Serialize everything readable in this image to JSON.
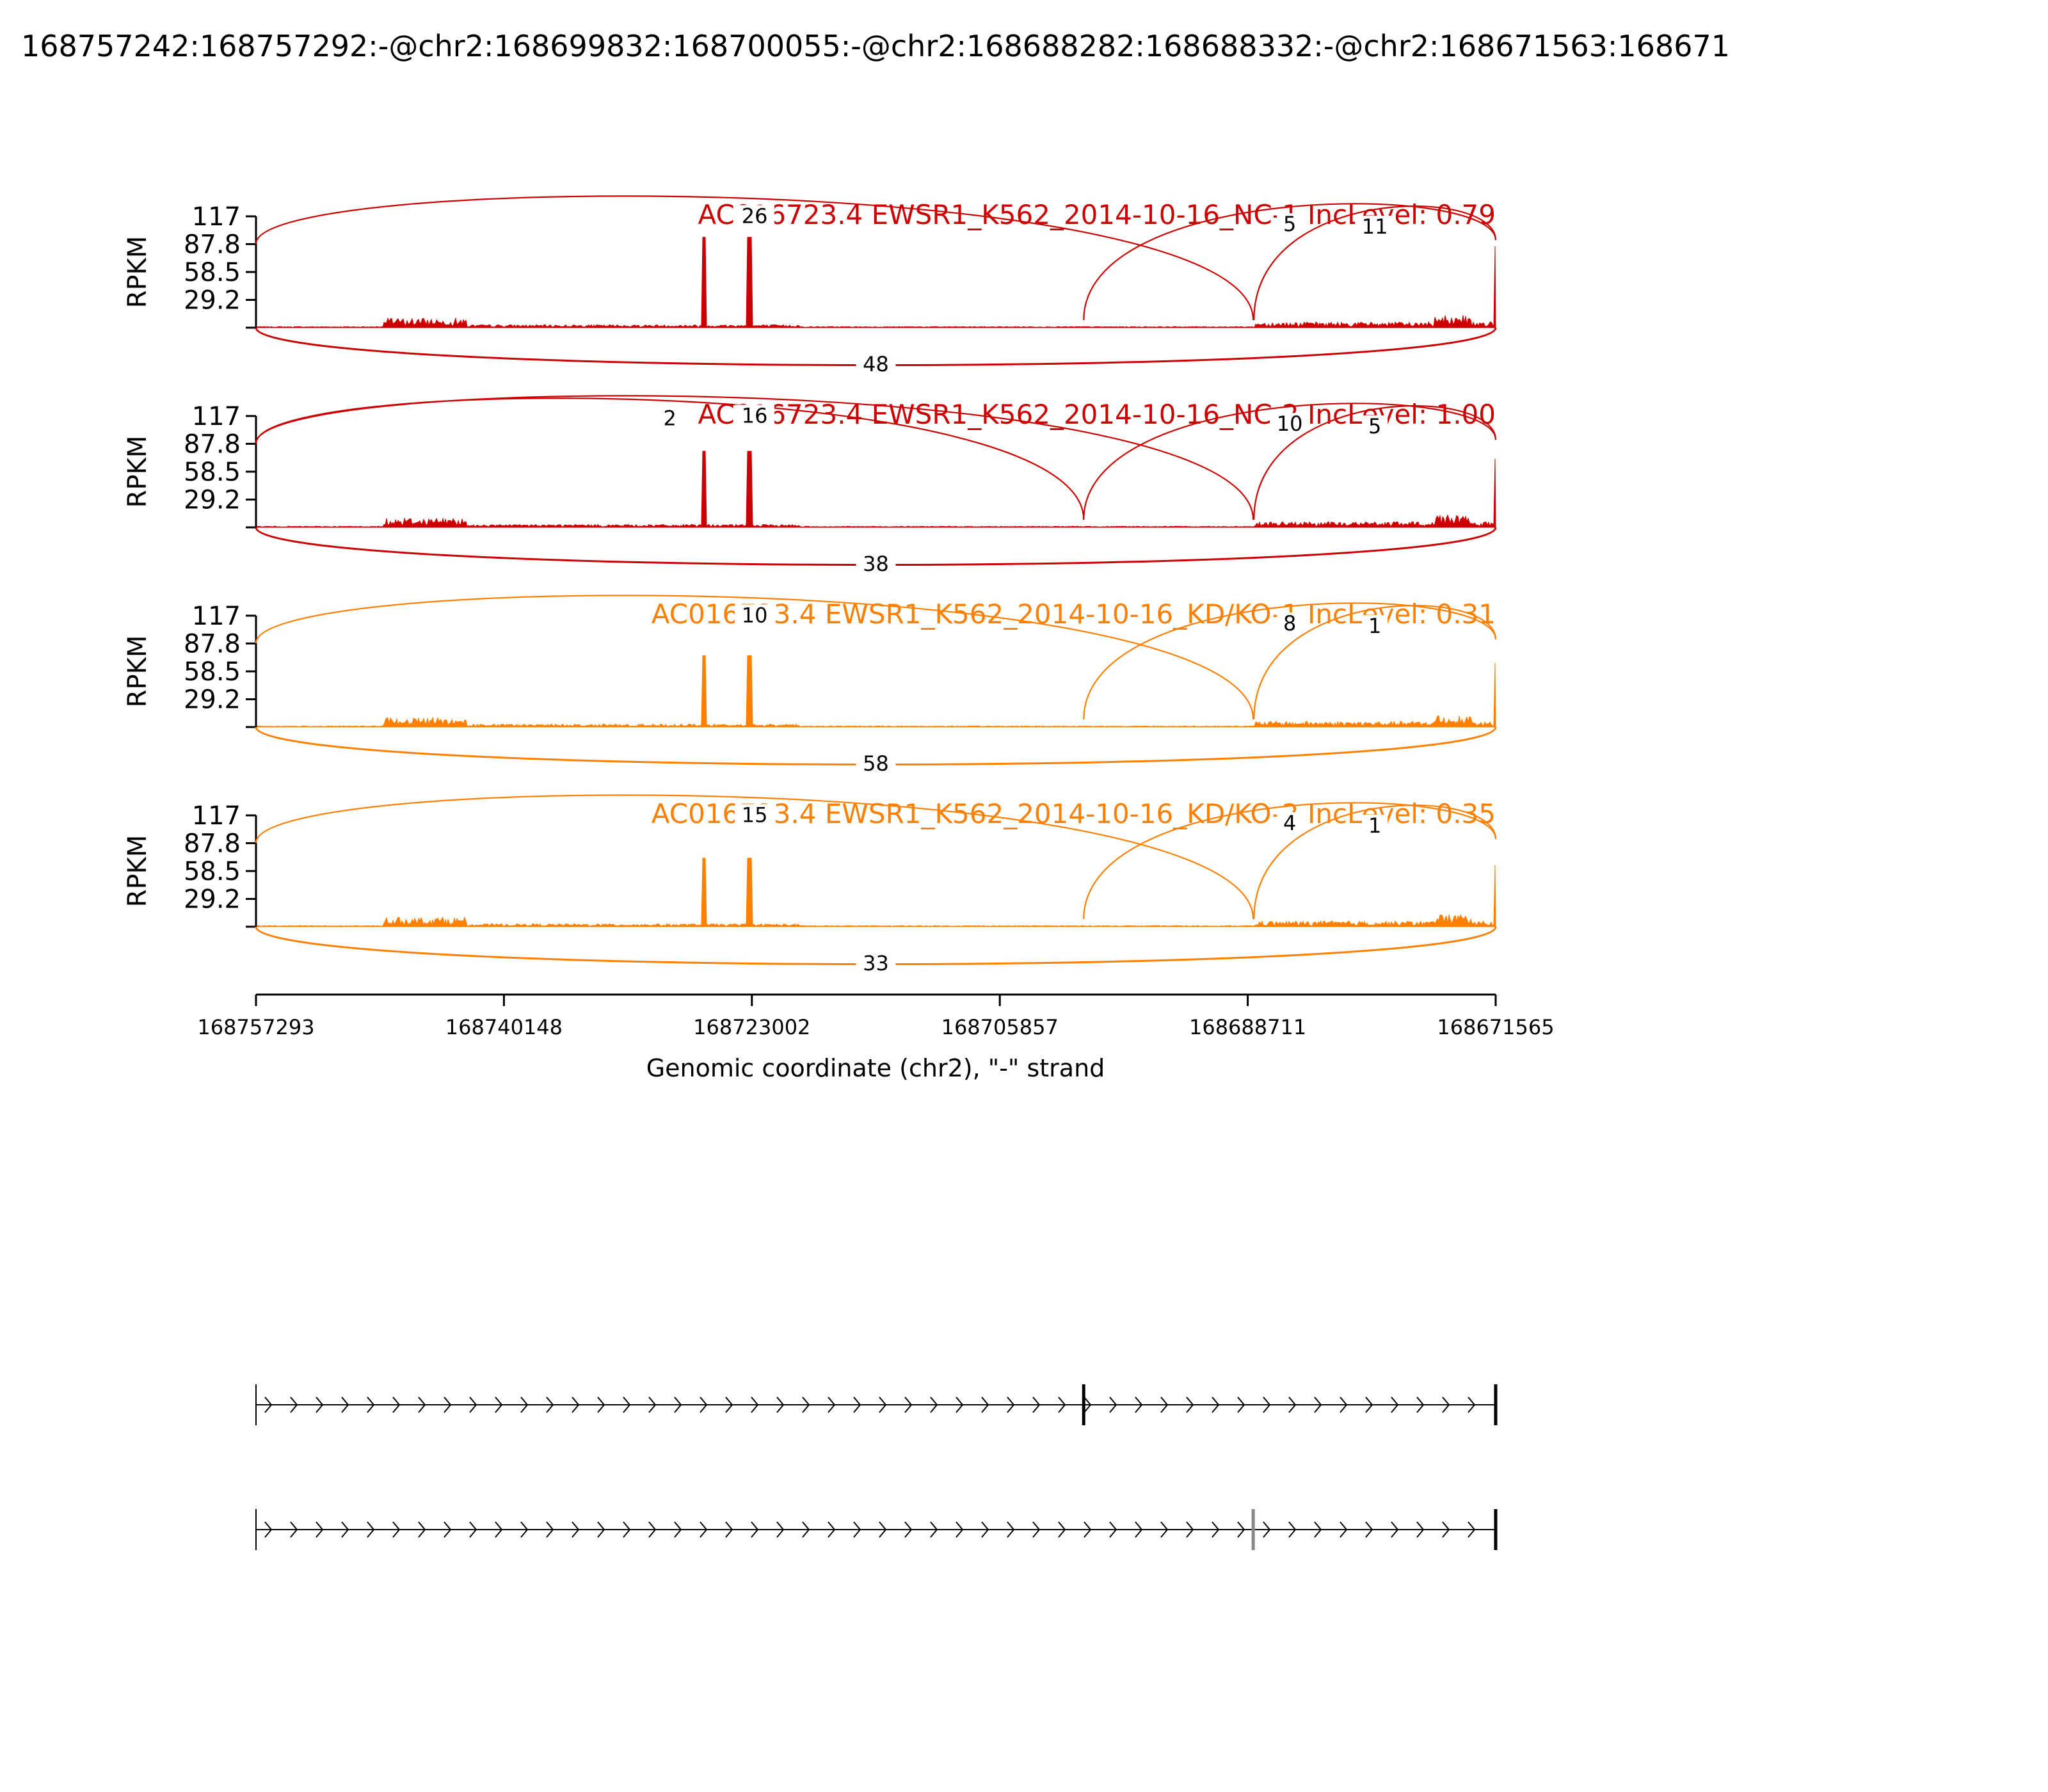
{
  "figure_title": "168757242:168757292:-@chr2:168699832:168700055:-@chr2:168688282:168688332:-@chr2:168671563:168671",
  "colors": {
    "nc": "#cc0000",
    "kd": "#ff8000",
    "axis": "#000000"
  },
  "chart_data": {
    "type": "area",
    "ylabel": "RPKM",
    "y_ticks": [
      "117",
      "87.8",
      "58.5",
      "29.2"
    ],
    "ylim": [
      0,
      117
    ],
    "xlabel": "Genomic coordinate (chr2), \"-\" strand",
    "x_ticks": [
      "168757293",
      "168740148",
      "168723002",
      "168705857",
      "168688711",
      "168671565"
    ],
    "xlim": [
      168757293,
      168671565
    ],
    "exons": [
      {
        "start": 168757292,
        "end": 168757242
      },
      {
        "start": 168723300,
        "end": 168723050
      },
      {
        "start": 168700055,
        "end": 168699832
      },
      {
        "start": 168688332,
        "end": 168688282
      },
      {
        "start": 168671565,
        "end": 168671563
      }
    ],
    "tracks": [
      {
        "title": "AC016723.4 EWSR1_K562_2014-10-16_NC-1 IncLevel: 0.79",
        "group": "nc",
        "peak": 95,
        "junctions": [
          {
            "label": "26",
            "from": 168757293,
            "to": 168688332,
            "side": "top"
          },
          {
            "label": "5",
            "from": 168700055,
            "to": 168671565,
            "side": "top"
          },
          {
            "label": "11",
            "from": 168688282,
            "to": 168671565,
            "side": "top"
          },
          {
            "label": "48",
            "from": 168757293,
            "to": 168671565,
            "side": "bottom"
          }
        ]
      },
      {
        "title": "AC016723.4 EWSR1_K562_2014-10-16_NC-2 IncLevel: 1.00",
        "group": "nc",
        "peak": 80,
        "junctions": [
          {
            "label": "2",
            "from": 168757293,
            "to": 168700055,
            "side": "top"
          },
          {
            "label": "16",
            "from": 168757293,
            "to": 168688332,
            "side": "top"
          },
          {
            "label": "10",
            "from": 168700055,
            "to": 168671565,
            "side": "top"
          },
          {
            "label": "5",
            "from": 168688282,
            "to": 168671565,
            "side": "top"
          },
          {
            "label": "38",
            "from": 168757293,
            "to": 168671565,
            "side": "bottom"
          }
        ]
      },
      {
        "title": "AC016723.4 EWSR1_K562_2014-10-16_KD/KO-1 IncLevel: 0.31",
        "group": "kd",
        "peak": 75,
        "junctions": [
          {
            "label": "10",
            "from": 168757293,
            "to": 168688332,
            "side": "top"
          },
          {
            "label": "8",
            "from": 168700055,
            "to": 168671565,
            "side": "top"
          },
          {
            "label": "1",
            "from": 168688282,
            "to": 168671565,
            "side": "top"
          },
          {
            "label": "58",
            "from": 168757293,
            "to": 168671565,
            "side": "bottom"
          }
        ]
      },
      {
        "title": "AC016723.4 EWSR1_K562_2014-10-16_KD/KO-2 IncLevel: 0.35",
        "group": "kd",
        "peak": 72,
        "junctions": [
          {
            "label": "15",
            "from": 168757293,
            "to": 168688332,
            "side": "top"
          },
          {
            "label": "4",
            "from": 168700055,
            "to": 168671565,
            "side": "top"
          },
          {
            "label": "1",
            "from": 168688282,
            "to": 168671565,
            "side": "top"
          },
          {
            "label": "33",
            "from": 168757293,
            "to": 168671565,
            "side": "bottom"
          }
        ]
      }
    ],
    "isoforms": [
      {
        "exons": [
          [
            168757293,
            168757242
          ],
          [
            168700055,
            168699832
          ],
          [
            168671565,
            168671563
          ]
        ]
      },
      {
        "exons": [
          [
            168757293,
            168757242
          ],
          [
            168688332,
            168688282
          ],
          [
            168671565,
            168671563
          ]
        ]
      }
    ]
  }
}
